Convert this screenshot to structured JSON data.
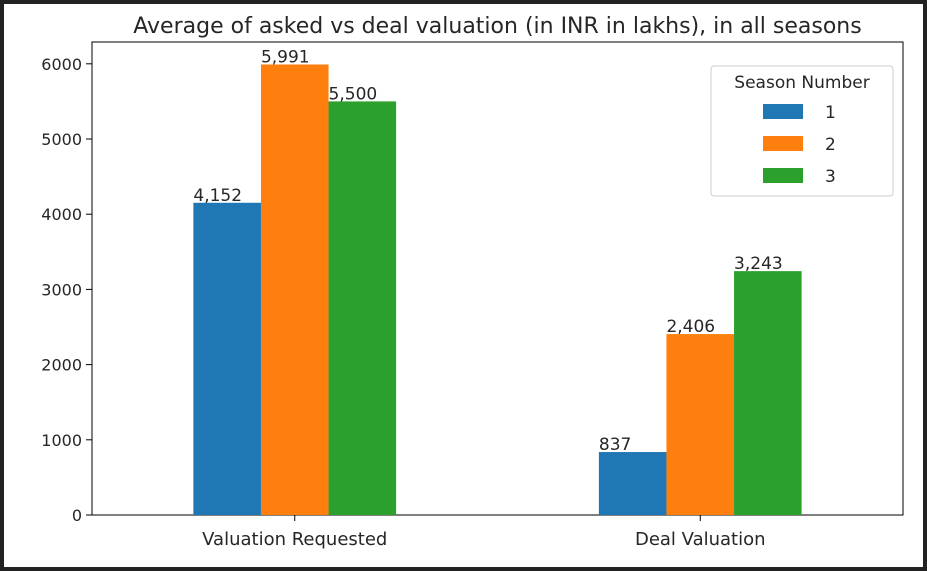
{
  "chart_data": {
    "type": "bar",
    "title": "Average of asked vs deal valuation (in INR in lakhs), in all seasons",
    "xlabel": "",
    "ylabel": "",
    "categories": [
      "Valuation Requested",
      "Deal Valuation"
    ],
    "series": [
      {
        "name": "1",
        "values": [
          4152,
          837
        ],
        "labels": [
          "4,152",
          "837"
        ],
        "color": "#1f77b4"
      },
      {
        "name": "2",
        "values": [
          5991,
          2406
        ],
        "labels": [
          "5,991",
          "2,406"
        ],
        "color": "#ff7f0e"
      },
      {
        "name": "3",
        "values": [
          5500,
          3243
        ],
        "labels": [
          "5,500",
          "3,243"
        ],
        "color": "#2ca02c"
      }
    ],
    "ylim": [
      0,
      6290
    ],
    "yticks": [
      0,
      1000,
      2000,
      3000,
      4000,
      5000,
      6000
    ],
    "grid": false,
    "legend": {
      "title": "Season Number",
      "placement": "top-right"
    }
  }
}
